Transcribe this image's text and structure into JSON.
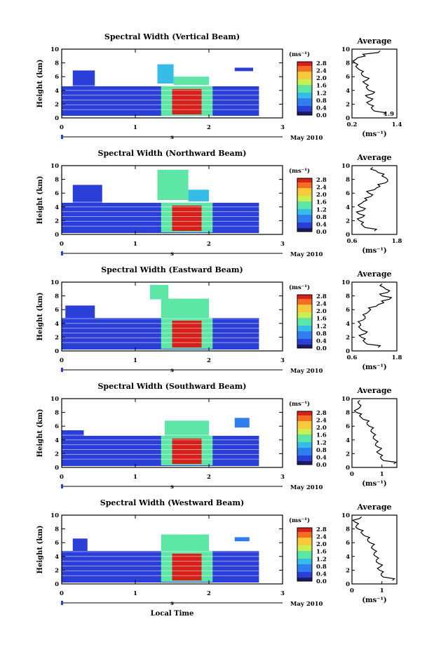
{
  "chart_data": [
    {
      "type": "heatmap",
      "title": "Spectral Width (Vertical Beam)",
      "xlabel": "",
      "ylabel": "Height (km)",
      "xlim": [
        0,
        3
      ],
      "ylim": [
        0,
        10
      ],
      "xticks": [
        "0",
        "1",
        "2",
        "3"
      ],
      "yticks": [
        "0",
        "2",
        "4",
        "6",
        "8",
        "10"
      ],
      "date_label": "May 2010",
      "mid_marker": "s",
      "colorbar": {
        "label": "(ms⁻¹)",
        "ticks": [
          "0.0",
          "0.4",
          "0.8",
          "1.2",
          "1.6",
          "2.0",
          "2.4",
          "2.8"
        ]
      },
      "regions": [
        {
          "x": [
            0.0,
            2.68
          ],
          "y": [
            0.3,
            4.6
          ],
          "value": 0.4
        },
        {
          "x": [
            1.35,
            2.05
          ],
          "y": [
            0.3,
            4.6
          ],
          "value": 1.5
        },
        {
          "x": [
            1.5,
            1.9
          ],
          "y": [
            0.5,
            4.2
          ],
          "value": 2.8
        },
        {
          "x": [
            0.15,
            0.45
          ],
          "y": [
            4.6,
            6.9
          ],
          "value": 0.5
        },
        {
          "x": [
            1.3,
            1.52
          ],
          "y": [
            5.0,
            7.8
          ],
          "value": 1.2
        },
        {
          "x": [
            1.52,
            2.0
          ],
          "y": [
            4.8,
            6.0
          ],
          "value": 1.4
        },
        {
          "x": [
            2.35,
            2.6
          ],
          "y": [
            6.8,
            7.3
          ],
          "value": 0.3
        }
      ],
      "average_profile": {
        "title": "Average",
        "xlabel": "(ms⁻¹)",
        "xlim": [
          0.2,
          1.4
        ],
        "xticks": [
          "0.2",
          "1.4"
        ],
        "inset_label": "1.9",
        "height": [
          0.5,
          1,
          1.5,
          2,
          2.5,
          3,
          3.5,
          4,
          4.5,
          5,
          5.5,
          6,
          6.5,
          7,
          7.5,
          8,
          8.5,
          9,
          9.5
        ],
        "value": [
          1.05,
          0.8,
          0.72,
          0.65,
          0.7,
          0.62,
          0.75,
          0.66,
          0.58,
          0.55,
          0.6,
          0.52,
          0.45,
          0.4,
          0.3,
          0.28,
          0.3,
          0.55,
          0.9
        ]
      }
    },
    {
      "type": "heatmap",
      "title": "Spectral Width (Northward Beam)",
      "xlabel": "",
      "ylabel": "Height (km)",
      "xlim": [
        0,
        3
      ],
      "ylim": [
        0,
        10
      ],
      "xticks": [
        "0",
        "1",
        "2",
        "3"
      ],
      "yticks": [
        "0",
        "2",
        "4",
        "6",
        "8",
        "10"
      ],
      "date_label": "May 2010",
      "mid_marker": "s",
      "colorbar": {
        "label": "(ms⁻¹)",
        "ticks": [
          "0.0",
          "0.4",
          "0.8",
          "1.2",
          "1.6",
          "2.0",
          "2.4",
          "2.8"
        ]
      },
      "regions": [
        {
          "x": [
            0.0,
            2.68
          ],
          "y": [
            0.2,
            4.6
          ],
          "value": 0.4
        },
        {
          "x": [
            1.35,
            2.05
          ],
          "y": [
            0.3,
            4.6
          ],
          "value": 1.5
        },
        {
          "x": [
            1.5,
            1.9
          ],
          "y": [
            0.5,
            4.2
          ],
          "value": 2.8
        },
        {
          "x": [
            0.15,
            0.55
          ],
          "y": [
            4.6,
            7.2
          ],
          "value": 0.5
        },
        {
          "x": [
            1.3,
            1.72
          ],
          "y": [
            5.0,
            9.4
          ],
          "value": 1.3
        },
        {
          "x": [
            1.72,
            2.0
          ],
          "y": [
            4.8,
            6.5
          ],
          "value": 1.2
        }
      ],
      "average_profile": {
        "title": "Average",
        "xlabel": "(ms⁻¹)",
        "xlim": [
          0.6,
          1.8
        ],
        "xticks": [
          "0.6",
          "1.8"
        ],
        "inset_label": "",
        "height": [
          0.5,
          1,
          1.5,
          2,
          2.5,
          3,
          3.5,
          4,
          4.5,
          5,
          5.5,
          6,
          6.5,
          7,
          7.5,
          8,
          8.5,
          9,
          9.5
        ],
        "value": [
          1.2,
          0.95,
          0.85,
          0.8,
          0.88,
          0.78,
          0.9,
          0.82,
          0.85,
          1.0,
          1.1,
          1.05,
          1.2,
          1.35,
          1.5,
          1.55,
          1.4,
          1.3,
          1.1
        ]
      }
    },
    {
      "type": "heatmap",
      "title": "Spectral Width (Eastward Beam)",
      "xlabel": "",
      "ylabel": "Height (km)",
      "xlim": [
        0,
        3
      ],
      "ylim": [
        0,
        10
      ],
      "xticks": [
        "0",
        "1",
        "2",
        "3"
      ],
      "yticks": [
        "0",
        "2",
        "4",
        "6",
        "8",
        "10"
      ],
      "date_label": "May 2010",
      "mid_marker": "s",
      "colorbar": {
        "label": "(ms⁻¹)",
        "ticks": [
          "0.0",
          "0.4",
          "0.8",
          "1.2",
          "1.6",
          "2.0",
          "2.4",
          "2.8"
        ]
      },
      "regions": [
        {
          "x": [
            0.0,
            2.68
          ],
          "y": [
            0.2,
            4.8
          ],
          "value": 0.4
        },
        {
          "x": [
            1.35,
            2.05
          ],
          "y": [
            0.3,
            4.8
          ],
          "value": 1.5
        },
        {
          "x": [
            1.5,
            1.9
          ],
          "y": [
            0.5,
            4.4
          ],
          "value": 2.8
        },
        {
          "x": [
            0.05,
            0.45
          ],
          "y": [
            4.8,
            6.6
          ],
          "value": 0.5
        },
        {
          "x": [
            1.2,
            1.45
          ],
          "y": [
            7.5,
            9.6
          ],
          "value": 1.4
        },
        {
          "x": [
            1.35,
            2.0
          ],
          "y": [
            4.8,
            7.6
          ],
          "value": 1.3
        }
      ],
      "average_profile": {
        "title": "Average",
        "xlabel": "(ms⁻¹)",
        "xlim": [
          0.6,
          1.8
        ],
        "xticks": [
          "0.6",
          "1.8"
        ],
        "inset_label": "",
        "height": [
          0.5,
          1,
          1.5,
          2,
          2.5,
          3,
          3.5,
          4,
          4.5,
          5,
          5.5,
          6,
          6.5,
          7,
          7.5,
          8,
          8.5,
          9,
          9.5
        ],
        "value": [
          1.3,
          1.0,
          0.9,
          0.85,
          0.95,
          0.88,
          0.78,
          0.82,
          0.9,
          0.95,
          1.0,
          1.1,
          1.25,
          1.45,
          1.6,
          1.4,
          1.55,
          1.5,
          1.35
        ]
      }
    },
    {
      "type": "heatmap",
      "title": "Spectral Width (Southward Beam)",
      "xlabel": "",
      "ylabel": "Height (km)",
      "xlim": [
        0,
        3
      ],
      "ylim": [
        0,
        10
      ],
      "xticks": [
        "0",
        "1",
        "2",
        "3"
      ],
      "yticks": [
        "0",
        "2",
        "4",
        "6",
        "8",
        "10"
      ],
      "date_label": "May 2010",
      "mid_marker": "s",
      "colorbar": {
        "label": "(ms⁻¹)",
        "ticks": [
          "0.0",
          "0.4",
          "0.8",
          "1.2",
          "1.6",
          "2.0",
          "2.4",
          "2.8"
        ]
      },
      "regions": [
        {
          "x": [
            0.0,
            2.68
          ],
          "y": [
            0.2,
            4.6
          ],
          "value": 0.4
        },
        {
          "x": [
            1.35,
            2.05
          ],
          "y": [
            0.3,
            4.6
          ],
          "value": 1.5
        },
        {
          "x": [
            1.5,
            1.9
          ],
          "y": [
            0.5,
            4.2
          ],
          "value": 2.8
        },
        {
          "x": [
            0.0,
            0.3
          ],
          "y": [
            4.6,
            5.4
          ],
          "value": 0.5
        },
        {
          "x": [
            1.4,
            2.0
          ],
          "y": [
            4.6,
            6.8
          ],
          "value": 1.3
        },
        {
          "x": [
            2.35,
            2.55
          ],
          "y": [
            5.8,
            7.2
          ],
          "value": 0.6
        }
      ],
      "average_profile": {
        "title": "Average",
        "xlabel": "(ms⁻¹)",
        "xlim": [
          0,
          1.5
        ],
        "xticks": [
          "0",
          "1"
        ],
        "inset_label": "",
        "height": [
          0.5,
          1,
          1.5,
          2,
          2.5,
          3,
          3.5,
          4,
          4.5,
          5,
          5.5,
          6,
          6.5,
          7,
          7.5,
          8,
          8.5,
          9,
          9.5
        ],
        "value": [
          1.4,
          1.05,
          0.95,
          0.9,
          0.92,
          0.85,
          0.8,
          0.78,
          0.72,
          0.7,
          0.65,
          0.58,
          0.5,
          0.38,
          0.25,
          0.15,
          0.2,
          0.3,
          0.2
        ]
      }
    },
    {
      "type": "heatmap",
      "title": "Spectral Width (Westward Beam)",
      "xlabel": "Local Time",
      "ylabel": "Height (km)",
      "xlim": [
        0,
        3
      ],
      "ylim": [
        0,
        10
      ],
      "xticks": [
        "0",
        "1",
        "2",
        "3"
      ],
      "yticks": [
        "0",
        "2",
        "4",
        "6",
        "8",
        "10"
      ],
      "date_label": "May 2010",
      "mid_marker": "s",
      "colorbar": {
        "label": "(ms⁻¹)",
        "ticks": [
          "0.0",
          "0.4",
          "0.8",
          "1.2",
          "1.6",
          "2.0",
          "2.4",
          "2.8"
        ]
      },
      "regions": [
        {
          "x": [
            0.0,
            2.68
          ],
          "y": [
            0.2,
            4.8
          ],
          "value": 0.4
        },
        {
          "x": [
            1.35,
            2.05
          ],
          "y": [
            0.3,
            4.8
          ],
          "value": 1.5
        },
        {
          "x": [
            1.5,
            1.9
          ],
          "y": [
            0.5,
            4.4
          ],
          "value": 2.8
        },
        {
          "x": [
            0.15,
            0.35
          ],
          "y": [
            4.8,
            6.6
          ],
          "value": 0.5
        },
        {
          "x": [
            1.35,
            2.0
          ],
          "y": [
            4.8,
            7.2
          ],
          "value": 1.3
        },
        {
          "x": [
            2.35,
            2.55
          ],
          "y": [
            6.2,
            6.8
          ],
          "value": 0.6
        }
      ],
      "average_profile": {
        "title": "Average",
        "xlabel": "(ms⁻¹)",
        "xlim": [
          0,
          1.5
        ],
        "xticks": [
          "0",
          "1"
        ],
        "inset_label": "",
        "height": [
          0.5,
          1,
          1.5,
          2,
          2.5,
          3,
          3.5,
          4,
          4.5,
          5,
          5.5,
          6,
          6.5,
          7,
          7.5,
          8,
          8.5,
          9,
          9.5
        ],
        "value": [
          1.35,
          1.05,
          0.98,
          0.92,
          0.95,
          0.88,
          0.82,
          0.8,
          0.75,
          0.72,
          0.68,
          0.6,
          0.52,
          0.42,
          0.3,
          0.2,
          0.15,
          0.1,
          0.25
        ]
      }
    }
  ],
  "colors": {
    "palette": [
      "#1a1a60",
      "#2b3fd8",
      "#2f7ef0",
      "#35bde8",
      "#5de6a6",
      "#c8f050",
      "#f8c93a",
      "#f36d22",
      "#d8201a"
    ],
    "line": "#000000"
  }
}
